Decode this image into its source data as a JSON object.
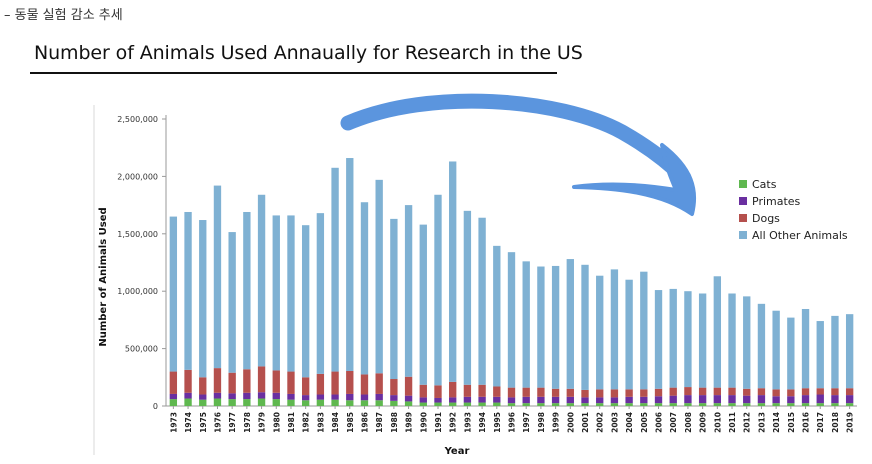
{
  "caption": "– 동물 실험 감소 추세",
  "colors": {
    "cats": "#5fb84f",
    "primates": "#6a2fa0",
    "dogs": "#b5504d",
    "other": "#7fb1d3",
    "arrow": "#5b95de"
  },
  "chart_data": {
    "type": "bar",
    "stacked": true,
    "title": "Number of Animals Used Annaually for Research in the US",
    "xlabel": "Year",
    "ylabel": "Number of Animals Used",
    "ylim": [
      0,
      2500000
    ],
    "yticks": [
      0,
      500000,
      1000000,
      1500000,
      2000000,
      2500000
    ],
    "ytick_labels": [
      "0",
      "500,000",
      "1,000,000",
      "1,500,000",
      "2,000,000",
      "2,500,000"
    ],
    "legend_position": "right",
    "categories": [
      "1973",
      "1974",
      "1975",
      "1976",
      "1977",
      "1978",
      "1979",
      "1980",
      "1981",
      "1982",
      "1983",
      "1984",
      "1985",
      "1986",
      "1987",
      "1988",
      "1989",
      "1990",
      "1991",
      "1992",
      "1993",
      "1994",
      "1995",
      "1996",
      "1997",
      "1998",
      "1999",
      "2000",
      "2001",
      "2002",
      "2003",
      "2004",
      "2005",
      "2006",
      "2007",
      "2008",
      "2009",
      "2010",
      "2011",
      "2012",
      "2013",
      "2014",
      "2015",
      "2016",
      "2017",
      "2018",
      "2019"
    ],
    "series": [
      {
        "name": "Cats",
        "color_key": "cats",
        "values": [
          60000,
          65000,
          55000,
          65000,
          60000,
          60000,
          65000,
          60000,
          55000,
          50000,
          55000,
          55000,
          50000,
          50000,
          50000,
          45000,
          40000,
          30000,
          30000,
          30000,
          30000,
          30000,
          30000,
          25000,
          25000,
          25000,
          25000,
          25000,
          25000,
          25000,
          25000,
          25000,
          25000,
          25000,
          25000,
          25000,
          25000,
          25000,
          25000,
          25000,
          25000,
          25000,
          25000,
          25000,
          25000,
          25000,
          25000
        ]
      },
      {
        "name": "Primates",
        "color_key": "primates",
        "values": [
          45000,
          50000,
          45000,
          50000,
          50000,
          55000,
          55000,
          55000,
          50000,
          45000,
          45000,
          45000,
          55000,
          50000,
          55000,
          50000,
          50000,
          45000,
          40000,
          45000,
          50000,
          50000,
          50000,
          50000,
          55000,
          55000,
          55000,
          55000,
          50000,
          50000,
          50000,
          55000,
          55000,
          60000,
          65000,
          70000,
          70000,
          70000,
          70000,
          65000,
          70000,
          60000,
          60000,
          70000,
          75000,
          70000,
          70000
        ]
      },
      {
        "name": "Dogs",
        "color_key": "dogs",
        "values": [
          195000,
          200000,
          150000,
          215000,
          180000,
          205000,
          225000,
          195000,
          195000,
          155000,
          180000,
          200000,
          200000,
          175000,
          180000,
          140000,
          165000,
          110000,
          110000,
          135000,
          105000,
          105000,
          90000,
          85000,
          80000,
          80000,
          70000,
          70000,
          65000,
          70000,
          70000,
          65000,
          65000,
          65000,
          70000,
          70000,
          65000,
          65000,
          65000,
          60000,
          60000,
          60000,
          60000,
          60000,
          55000,
          60000,
          60000
        ]
      },
      {
        "name": "All Other Animals",
        "color_key": "other",
        "values": [
          1350000,
          1375000,
          1370000,
          1590000,
          1225000,
          1370000,
          1495000,
          1350000,
          1360000,
          1325000,
          1400000,
          1775000,
          1855000,
          1500000,
          1685000,
          1395000,
          1495000,
          1395000,
          1660000,
          1920000,
          1515000,
          1455000,
          1225000,
          1180000,
          1100000,
          1055000,
          1070000,
          1130000,
          1090000,
          990000,
          1045000,
          955000,
          1025000,
          860000,
          860000,
          835000,
          820000,
          970000,
          820000,
          805000,
          735000,
          685000,
          625000,
          690000,
          585000,
          630000,
          645000
        ]
      }
    ]
  }
}
